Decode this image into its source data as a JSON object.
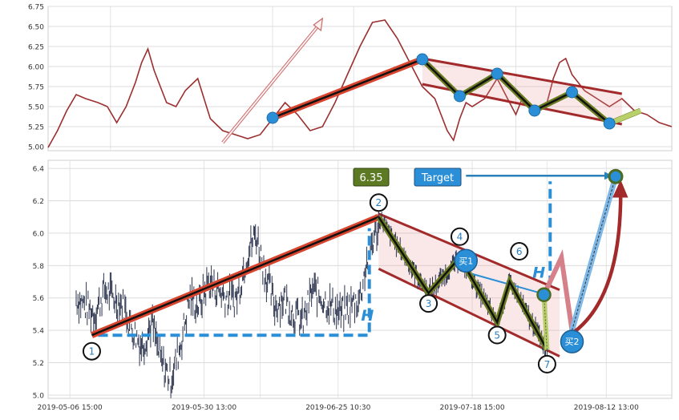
{
  "chart_data": [
    {
      "type": "line",
      "panel": "top",
      "ylim": [
        4.95,
        6.75
      ],
      "y_ticks": [
        5.0,
        5.25,
        5.5,
        5.75,
        6.0,
        6.25,
        6.5,
        6.75
      ],
      "y_tick_labels": [
        "5.00",
        "5.25",
        "5.50",
        "5.75",
        "6.00",
        "6.25",
        "6.50",
        "6.75"
      ],
      "grid": true,
      "series": [
        {
          "color": "#9b2f2f",
          "x": [
            0,
            1.5,
            3,
            4.5,
            6,
            8,
            9.5,
            11,
            12.5,
            14,
            15,
            16,
            17,
            18,
            19,
            20.5,
            22,
            24,
            26,
            28,
            30,
            32,
            34,
            36,
            38,
            40,
            42,
            44,
            46,
            48,
            50,
            52,
            54,
            56,
            58,
            60,
            62,
            64,
            65,
            66,
            67,
            68,
            70,
            72,
            74,
            75,
            76,
            77,
            78,
            79,
            80,
            81,
            82,
            83,
            84,
            86,
            88,
            90,
            92,
            94,
            96,
            98,
            100
          ],
          "y": [
            4.99,
            5.2,
            5.45,
            5.65,
            5.6,
            5.55,
            5.5,
            5.3,
            5.5,
            5.8,
            6.05,
            6.22,
            5.95,
            5.75,
            5.55,
            5.5,
            5.7,
            5.85,
            5.35,
            5.2,
            5.15,
            5.1,
            5.15,
            5.35,
            5.55,
            5.4,
            5.2,
            5.25,
            5.55,
            5.9,
            6.25,
            6.55,
            6.58,
            6.35,
            6.05,
            5.75,
            5.6,
            5.2,
            5.08,
            5.35,
            5.55,
            5.5,
            5.6,
            5.85,
            5.55,
            5.4,
            5.6,
            5.5,
            5.45,
            5.5,
            5.55,
            5.85,
            6.05,
            6.1,
            5.9,
            5.7,
            5.6,
            5.5,
            5.6,
            5.45,
            5.4,
            5.3,
            5.25
          ]
        }
      ],
      "trend_line": {
        "x": [
          0,
          1
        ],
        "y": [
          5.36,
          6.08
        ]
      },
      "arrow": {
        "from": [
          28,
          5.05
        ],
        "to": [
          44,
          6.6
        ]
      },
      "points": [
        {
          "x": 0.36,
          "y": 5.36
        },
        {
          "x": 0.6,
          "y": 6.09
        },
        {
          "x": 0.66,
          "y": 5.63
        },
        {
          "x": 0.72,
          "y": 5.91
        },
        {
          "x": 0.78,
          "y": 5.45
        },
        {
          "x": 0.84,
          "y": 5.68
        },
        {
          "x": 0.9,
          "y": 5.29
        }
      ],
      "channel": {
        "upper": [
          [
            0.6,
            6.1
          ],
          [
            0.92,
            5.66
          ]
        ],
        "lower": [
          [
            0.6,
            5.78
          ],
          [
            0.92,
            5.28
          ]
        ]
      }
    },
    {
      "type": "line",
      "panel": "bottom",
      "ylim": [
        4.98,
        6.45
      ],
      "y_ticks": [
        5.0,
        5.2,
        5.4,
        5.6,
        5.8,
        6.0,
        6.2,
        6.4
      ],
      "y_tick_labels": [
        "5.0",
        "5.2",
        "5.4",
        "5.6",
        "5.8",
        "6.0",
        "6.2",
        "6.4"
      ],
      "x_tick_labels": [
        "2019-05-06 15:00",
        "2019-05-30 13:00",
        "2019-06-25 10:30",
        "2019-07-18 15:00",
        "2019-08-12 13:00"
      ],
      "grid": true,
      "series": [
        {
          "color": "#2e3650",
          "x": [
            0,
            2,
            4,
            6,
            8,
            10,
            12,
            14,
            16,
            18,
            20,
            22,
            24,
            26,
            28,
            30,
            32,
            34,
            36,
            38,
            40,
            42,
            44,
            46,
            48,
            50,
            52,
            54,
            56,
            58,
            60,
            62,
            64
          ],
          "y": [
            5.6,
            5.55,
            5.5,
            5.65,
            5.6,
            5.55,
            5.4,
            5.3,
            5.45,
            5.2,
            5.1,
            5.3,
            5.6,
            5.55,
            5.7,
            5.65,
            5.6,
            5.6,
            5.85,
            6.0,
            5.75,
            5.55,
            5.6,
            5.5,
            5.45,
            5.65,
            5.6,
            5.55,
            5.5,
            5.55,
            5.6,
            5.9,
            6.05
          ]
        }
      ],
      "wave": {
        "labels": [
          "1",
          "2",
          "3",
          "4",
          "5",
          "6",
          "7"
        ],
        "x": [
          0.07,
          0.53,
          0.61,
          0.66,
          0.72,
          0.74,
          0.8
        ],
        "y": [
          5.37,
          6.1,
          5.63,
          5.85,
          5.45,
          5.7,
          5.28
        ]
      },
      "target_value_label": "6.35",
      "target_label": "Target",
      "height_label": "H",
      "buy_labels": [
        "买1",
        "买2"
      ],
      "buy_points": [
        {
          "label": "买1",
          "x": 0.67,
          "y": 5.83
        },
        {
          "label": "买2",
          "x": 0.84,
          "y": 5.4
        }
      ],
      "target_point": {
        "x": 0.91,
        "y": 6.35
      },
      "breakout_point": {
        "x": 0.795,
        "y": 5.62
      }
    }
  ]
}
